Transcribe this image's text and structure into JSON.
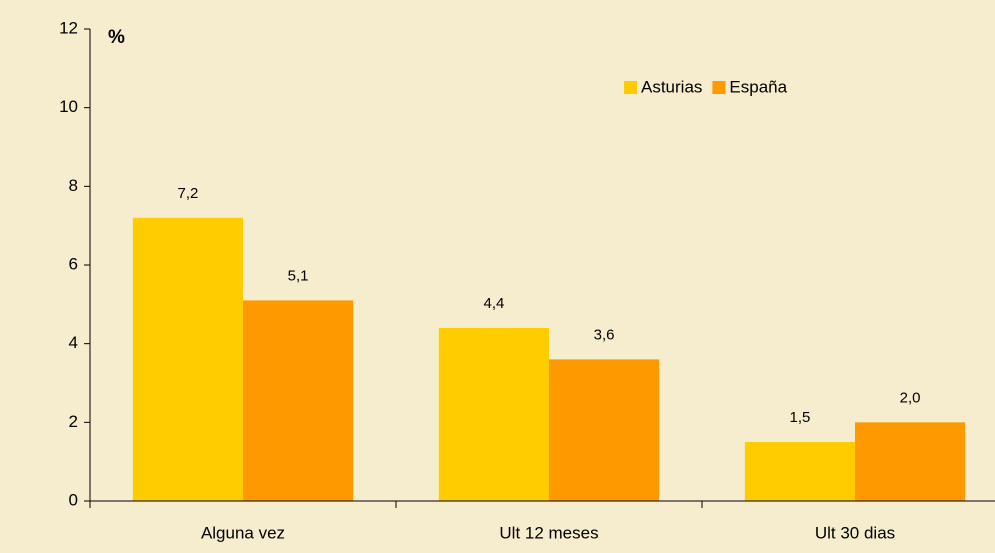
{
  "chart_data": {
    "type": "bar",
    "y_label": "%",
    "categories": [
      "Alguna vez",
      "Ult 12 meses",
      "Ult 30 dias"
    ],
    "series": [
      {
        "name": "Asturias",
        "color": "#ffcc00",
        "values": [
          7.2,
          4.4,
          1.5
        ],
        "value_labels": [
          "7,2",
          "4,4",
          "1,5"
        ]
      },
      {
        "name": "España",
        "color": "#ff9900",
        "values": [
          5.1,
          3.6,
          2.0
        ],
        "value_labels": [
          "5,1",
          "3,6",
          "2,0"
        ]
      }
    ],
    "ylim": [
      0,
      12
    ],
    "yticks": [
      0,
      2,
      4,
      6,
      8,
      10,
      12
    ],
    "grid": false,
    "legend": "top-right"
  }
}
